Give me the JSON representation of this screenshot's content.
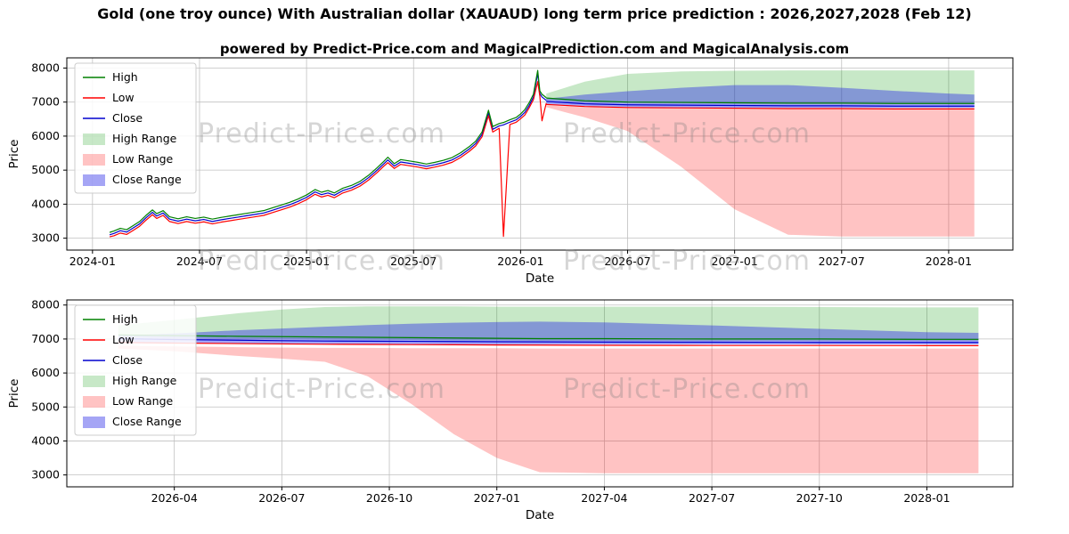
{
  "page": {
    "title": "Gold (one troy ounce) With Australian dollar (XAUAUD) long term price prediction : 2026,2027,2028 (Feb 12)",
    "subtitle": "powered by Predict-Price.com and MagicalPrediction.com and MagicalAnalysis.com",
    "watermark": "Predict-Price.com"
  },
  "colors": {
    "high": "#008000",
    "low": "#ff0000",
    "close": "#0000cd",
    "high_range": "rgba(0,150,0,0.22)",
    "low_range": "rgba(255,40,40,0.28)",
    "close_range": "rgba(40,40,230,0.42)",
    "grid": "#c0c0c0",
    "frame": "#000000"
  },
  "chart_data": [
    {
      "type": "line",
      "xlabel": "Date",
      "ylabel": "Price",
      "xlim": [
        2023.88,
        2028.3
      ],
      "ylim": [
        2650,
        8300
      ],
      "yticks": [
        3000,
        4000,
        5000,
        6000,
        7000,
        8000
      ],
      "xticks": [
        [
          2024.0,
          "2024-01"
        ],
        [
          2024.5,
          "2024-07"
        ],
        [
          2025.0,
          "2025-01"
        ],
        [
          2025.5,
          "2025-07"
        ],
        [
          2026.0,
          "2026-01"
        ],
        [
          2026.5,
          "2026-07"
        ],
        [
          2027.0,
          "2027-01"
        ],
        [
          2027.5,
          "2027-07"
        ],
        [
          2028.0,
          "2028-01"
        ]
      ],
      "legend": [
        {
          "label": "High",
          "type": "line",
          "color": "high"
        },
        {
          "label": "Low",
          "type": "line",
          "color": "low"
        },
        {
          "label": "Close",
          "type": "line",
          "color": "close"
        },
        {
          "label": "High Range",
          "type": "patch",
          "color": "high_range"
        },
        {
          "label": "Low Range",
          "type": "patch",
          "color": "low_range"
        },
        {
          "label": "Close Range",
          "type": "patch",
          "color": "close_range"
        }
      ],
      "historical": {
        "x": [
          2024.08,
          2024.1,
          2024.13,
          2024.16,
          2024.19,
          2024.22,
          2024.25,
          2024.28,
          2024.3,
          2024.33,
          2024.36,
          2024.4,
          2024.44,
          2024.48,
          2024.52,
          2024.56,
          2024.6,
          2024.64,
          2024.68,
          2024.72,
          2024.76,
          2024.8,
          2024.84,
          2024.88,
          2024.92,
          2024.96,
          2025.0,
          2025.04,
          2025.07,
          2025.1,
          2025.13,
          2025.17,
          2025.21,
          2025.25,
          2025.29,
          2025.33,
          2025.36,
          2025.38,
          2025.41,
          2025.44,
          2025.48,
          2025.52,
          2025.56,
          2025.6,
          2025.64,
          2025.68,
          2025.72,
          2025.76,
          2025.79,
          2025.82,
          2025.85,
          2025.87,
          2025.9,
          2025.92,
          2025.95,
          2025.98,
          2026.0,
          2026.02,
          2026.04,
          2026.06,
          2026.08,
          2026.09,
          2026.1,
          2026.12
        ],
        "high": [
          3170,
          3210,
          3290,
          3250,
          3370,
          3490,
          3670,
          3830,
          3720,
          3810,
          3630,
          3570,
          3630,
          3580,
          3620,
          3560,
          3610,
          3650,
          3690,
          3730,
          3770,
          3810,
          3890,
          3970,
          4050,
          4150,
          4270,
          4430,
          4350,
          4400,
          4330,
          4470,
          4550,
          4670,
          4850,
          5070,
          5250,
          5380,
          5190,
          5310,
          5270,
          5230,
          5180,
          5230,
          5290,
          5370,
          5510,
          5690,
          5850,
          6120,
          6760,
          6280,
          6370,
          6400,
          6480,
          6550,
          6650,
          6780,
          6980,
          7230,
          7930,
          7330,
          7230,
          7130
        ],
        "low": [
          3040,
          3070,
          3150,
          3110,
          3230,
          3350,
          3530,
          3690,
          3580,
          3670,
          3490,
          3430,
          3490,
          3440,
          3480,
          3420,
          3470,
          3510,
          3550,
          3590,
          3630,
          3670,
          3750,
          3830,
          3910,
          4010,
          4130,
          4290,
          4210,
          4260,
          4190,
          4330,
          4410,
          4530,
          4710,
          4930,
          5110,
          5220,
          5050,
          5170,
          5130,
          5090,
          5040,
          5090,
          5150,
          5230,
          5370,
          5550,
          5710,
          5980,
          6600,
          6120,
          6230,
          3050,
          6340,
          6410,
          6510,
          6620,
          6830,
          7070,
          7600,
          7170,
          6450,
          6970
        ],
        "close": [
          3100,
          3140,
          3220,
          3180,
          3300,
          3420,
          3600,
          3760,
          3650,
          3740,
          3560,
          3500,
          3560,
          3510,
          3550,
          3490,
          3540,
          3580,
          3620,
          3660,
          3700,
          3740,
          3820,
          3900,
          3980,
          4080,
          4200,
          4360,
          4280,
          4330,
          4260,
          4400,
          4480,
          4600,
          4780,
          5000,
          5180,
          5300,
          5120,
          5240,
          5200,
          5160,
          5110,
          5160,
          5220,
          5300,
          5440,
          5620,
          5780,
          6050,
          6680,
          6200,
          6300,
          6330,
          6410,
          6480,
          6580,
          6700,
          6900,
          7150,
          7850,
          7250,
          7150,
          7050
        ]
      },
      "forecast": {
        "x": [
          2026.12,
          2026.3,
          2026.5,
          2026.75,
          2027.0,
          2027.25,
          2027.5,
          2027.75,
          2028.0,
          2028.12
        ],
        "high": [
          7120,
          7040,
          7000,
          6990,
          6980,
          6970,
          6970,
          6960,
          6960,
          6960
        ],
        "low": [
          6930,
          6870,
          6840,
          6830,
          6820,
          6810,
          6810,
          6800,
          6800,
          6800
        ],
        "close": [
          7020,
          6950,
          6920,
          6910,
          6900,
          6890,
          6890,
          6880,
          6880,
          6880
        ]
      },
      "bands": {
        "x": [
          2026.12,
          2026.3,
          2026.5,
          2026.75,
          2027.0,
          2027.25,
          2027.5,
          2027.75,
          2028.0,
          2028.12
        ],
        "high_upper": [
          7250,
          7600,
          7830,
          7900,
          7920,
          7930,
          7930,
          7930,
          7930,
          7930
        ],
        "high_lower": [
          7060,
          7000,
          6970,
          6960,
          6950,
          6950,
          6950,
          6950,
          6950,
          6950
        ],
        "low_upper": [
          6900,
          6850,
          6830,
          6820,
          6810,
          6800,
          6800,
          6800,
          6800,
          6800
        ],
        "low_lower": [
          6850,
          6550,
          6150,
          5100,
          3850,
          3100,
          3050,
          3050,
          3050,
          3050
        ],
        "close_upper": [
          7100,
          7220,
          7320,
          7420,
          7500,
          7500,
          7420,
          7330,
          7250,
          7220
        ],
        "close_lower": [
          6940,
          6880,
          6850,
          6840,
          6830,
          6830,
          6830,
          6830,
          6830,
          6830
        ]
      }
    },
    {
      "type": "line",
      "xlabel": "Date",
      "ylabel": "Price",
      "xlim": [
        2026.0,
        2028.2
      ],
      "ylim": [
        2650,
        8150
      ],
      "yticks": [
        3000,
        4000,
        5000,
        6000,
        7000,
        8000
      ],
      "xticks": [
        [
          2026.25,
          "2026-04"
        ],
        [
          2026.5,
          "2026-07"
        ],
        [
          2026.75,
          "2026-10"
        ],
        [
          2027.0,
          "2027-01"
        ],
        [
          2027.25,
          "2027-04"
        ],
        [
          2027.5,
          "2027-07"
        ],
        [
          2027.75,
          "2027-10"
        ],
        [
          2028.0,
          "2028-01"
        ]
      ],
      "legend": [
        {
          "label": "High",
          "type": "line",
          "color": "high"
        },
        {
          "label": "Low",
          "type": "line",
          "color": "low"
        },
        {
          "label": "Close",
          "type": "line",
          "color": "close"
        },
        {
          "label": "High Range",
          "type": "patch",
          "color": "high_range"
        },
        {
          "label": "Low Range",
          "type": "patch",
          "color": "low_range"
        },
        {
          "label": "Close Range",
          "type": "patch",
          "color": "close_range"
        }
      ],
      "forecast": {
        "x": [
          2026.12,
          2026.25,
          2026.4,
          2026.5,
          2026.6,
          2026.7,
          2026.8,
          2026.9,
          2027.0,
          2027.1,
          2027.25,
          2027.5,
          2027.75,
          2028.0,
          2028.12
        ],
        "high": [
          7120,
          7100,
          7080,
          7070,
          7060,
          7050,
          7040,
          7030,
          7020,
          7010,
          7010,
          7000,
          7000,
          6990,
          6990
        ],
        "low": [
          6900,
          6880,
          6865,
          6855,
          6845,
          6840,
          6835,
          6830,
          6825,
          6820,
          6815,
          6810,
          6810,
          6805,
          6805
        ],
        "close": [
          7010,
          6985,
          6965,
          6950,
          6940,
          6935,
          6930,
          6925,
          6920,
          6915,
          6910,
          6905,
          6900,
          6900,
          6900
        ]
      },
      "bands": {
        "x": [
          2026.12,
          2026.25,
          2026.4,
          2026.5,
          2026.6,
          2026.7,
          2026.8,
          2026.9,
          2027.0,
          2027.1,
          2027.25,
          2027.5,
          2027.75,
          2028.0,
          2028.12
        ],
        "high_upper": [
          7400,
          7560,
          7760,
          7870,
          7940,
          7960,
          7960,
          7960,
          7950,
          7950,
          7950,
          7950,
          7940,
          7930,
          7930
        ],
        "high_lower": [
          7060,
          7030,
          7010,
          7000,
          6990,
          6980,
          6970,
          6960,
          6960,
          6950,
          6950,
          6950,
          6950,
          6950,
          6950
        ],
        "low_upper": [
          6800,
          6780,
          6760,
          6750,
          6740,
          6740,
          6730,
          6730,
          6730,
          6720,
          6720,
          6720,
          6720,
          6720,
          6720
        ],
        "low_lower": [
          6720,
          6640,
          6500,
          6420,
          6330,
          5900,
          5100,
          4200,
          3500,
          3080,
          3050,
          3050,
          3050,
          3050,
          3050
        ],
        "close_upper": [
          7100,
          7160,
          7260,
          7310,
          7360,
          7410,
          7450,
          7480,
          7500,
          7510,
          7490,
          7400,
          7300,
          7200,
          7180
        ],
        "close_lower": [
          6880,
          6870,
          6860,
          6855,
          6850,
          6845,
          6845,
          6840,
          6840,
          6840,
          6840,
          6840,
          6840,
          6840,
          6840
        ]
      }
    }
  ]
}
